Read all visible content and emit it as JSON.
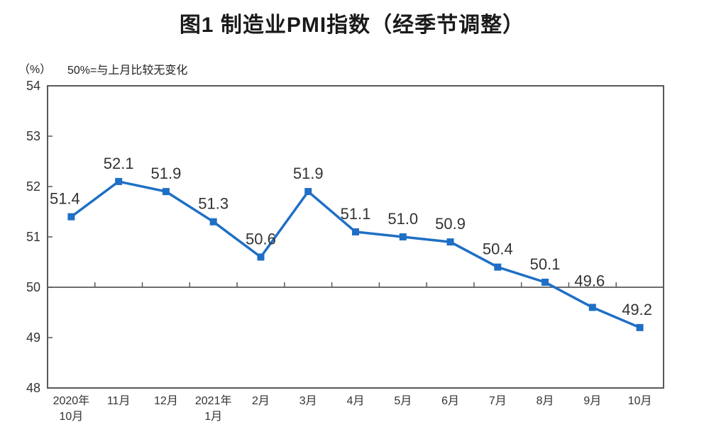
{
  "chart_data": {
    "type": "line",
    "title": "图1 制造业PMI指数（经季节调整）",
    "unit_label": "（%）",
    "note": "50%=与上月比较无变化",
    "categories": [
      [
        "2020年",
        "10月"
      ],
      "11月",
      "12月",
      [
        "2021年",
        "1月"
      ],
      "2月",
      "3月",
      "4月",
      "5月",
      "6月",
      "7月",
      "8月",
      "9月",
      "10月"
    ],
    "values": [
      51.4,
      52.1,
      51.9,
      51.3,
      50.6,
      51.9,
      51.1,
      51.0,
      50.9,
      50.4,
      50.1,
      49.6,
      49.2
    ],
    "point_labels": [
      "51.4",
      "52.1",
      "51.9",
      "51.3",
      "50.6",
      "51.9",
      "51.1",
      "51.0",
      "50.9",
      "50.4",
      "50.1",
      "49.6",
      "49.2"
    ],
    "ylim": [
      48,
      54
    ],
    "yticks": [
      48,
      49,
      50,
      51,
      52,
      53,
      54
    ],
    "reference_line": 50,
    "grid": "off",
    "legend": "none",
    "colors": {
      "line": "#1e6fc5",
      "marker": "#1e6fc5",
      "axis": "#595959",
      "text": "#333333",
      "title": "#1a1a1a"
    }
  }
}
